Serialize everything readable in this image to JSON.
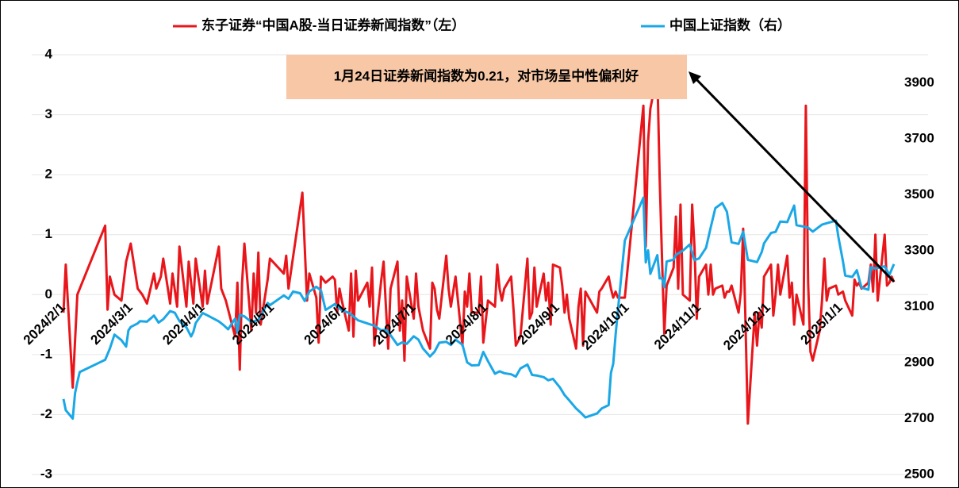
{
  "chart_data": {
    "type": "line",
    "legend_position": "top",
    "annotation": "1月24日证券新闻指数为0.21，对市场呈中性偏利好",
    "xlim": [
      "2024/2/1",
      "2025/1/24"
    ],
    "xticks": [
      "2024/2/1",
      "2024/3/1",
      "2024/4/1",
      "2024/5/1",
      "2024/6/1",
      "2024/7/1",
      "2024/8/1",
      "2024/9/1",
      "2024/10/1",
      "2024/11/1",
      "2024/12/1",
      "2025/1/1"
    ],
    "ylim": [
      -3,
      4
    ],
    "yticks": [
      -3,
      -2,
      -1,
      0,
      1,
      2,
      3,
      4
    ],
    "y2lim": [
      2500,
      4000
    ],
    "y2ticks": [
      2500,
      2700,
      2900,
      3100,
      3300,
      3500,
      3700,
      3900
    ],
    "grid": true,
    "series": [
      {
        "name": "东子证券“中国A股-当日证券新闻指数”（左）",
        "color": "#e8161b",
        "axis": "y",
        "x": [
          "2024/2/1",
          "2024/2/2",
          "2024/2/5",
          "2024/2/7",
          "2024/2/19",
          "2024/2/20",
          "2024/2/21",
          "2024/2/23",
          "2024/2/26",
          "2024/2/28",
          "2024/3/1",
          "2024/3/4",
          "2024/3/6",
          "2024/3/8",
          "2024/3/11",
          "2024/3/12",
          "2024/3/14",
          "2024/3/15",
          "2024/3/18",
          "2024/3/19",
          "2024/3/21",
          "2024/3/22",
          "2024/3/25",
          "2024/3/26",
          "2024/3/28",
          "2024/3/29",
          "2024/4/1",
          "2024/4/2",
          "2024/4/3",
          "2024/4/8",
          "2024/4/9",
          "2024/4/11",
          "2024/4/15",
          "2024/4/16",
          "2024/4/17",
          "2024/4/18",
          "2024/4/19",
          "2024/4/22",
          "2024/4/23",
          "2024/4/24",
          "2024/4/25",
          "2024/4/26",
          "2024/4/29",
          "2024/4/30",
          "2024/5/6",
          "2024/5/7",
          "2024/5/8",
          "2024/5/14",
          "2024/5/16",
          "2024/5/17",
          "2024/5/20",
          "2024/5/21",
          "2024/5/22",
          "2024/5/24",
          "2024/5/27",
          "2024/5/28",
          "2024/5/29",
          "2024/5/30",
          "2024/5/31",
          "2024/6/3",
          "2024/6/4",
          "2024/6/5",
          "2024/6/6",
          "2024/6/7",
          "2024/6/11",
          "2024/6/12",
          "2024/6/13",
          "2024/6/14",
          "2024/6/17",
          "2024/6/18",
          "2024/6/19",
          "2024/6/20",
          "2024/6/21",
          "2024/6/24",
          "2024/6/25",
          "2024/6/26",
          "2024/6/27",
          "2024/6/28",
          "2024/7/1",
          "2024/7/2",
          "2024/7/3",
          "2024/7/5",
          "2024/7/8",
          "2024/7/9",
          "2024/7/10",
          "2024/7/11",
          "2024/7/12",
          "2024/7/15",
          "2024/7/16",
          "2024/7/17",
          "2024/7/19",
          "2024/7/22",
          "2024/7/23",
          "2024/7/24",
          "2024/7/25",
          "2024/7/26",
          "2024/7/29",
          "2024/7/30",
          "2024/7/31",
          "2024/8/2",
          "2024/8/5",
          "2024/8/6",
          "2024/8/7",
          "2024/8/8",
          "2024/8/9",
          "2024/8/12",
          "2024/8/13",
          "2024/8/14",
          "2024/8/16",
          "2024/8/19",
          "2024/8/20",
          "2024/8/21",
          "2024/8/22",
          "2024/8/23",
          "2024/8/26",
          "2024/8/27",
          "2024/8/28",
          "2024/8/29",
          "2024/8/30",
          "2024/9/2",
          "2024/9/3",
          "2024/9/4",
          "2024/9/5",
          "2024/9/6",
          "2024/9/9",
          "2024/9/10",
          "2024/9/11",
          "2024/9/12",
          "2024/9/13",
          "2024/9/18",
          "2024/9/19",
          "2024/9/20",
          "2024/9/23",
          "2024/9/24",
          "2024/9/25",
          "2024/9/26",
          "2024/9/27",
          "2024/9/30",
          "2024/10/8",
          "2024/10/9",
          "2024/10/10",
          "2024/10/11",
          "2024/10/14",
          "2024/10/15",
          "2024/10/16",
          "2024/10/17",
          "2024/10/18",
          "2024/10/21",
          "2024/10/22",
          "2024/10/23",
          "2024/10/24",
          "2024/10/25",
          "2024/10/28",
          "2024/10/29",
          "2024/10/30",
          "2024/10/31",
          "2024/11/1",
          "2024/11/4",
          "2024/11/5",
          "2024/11/6",
          "2024/11/7",
          "2024/11/8",
          "2024/11/11",
          "2024/11/12",
          "2024/11/13",
          "2024/11/14",
          "2024/11/15",
          "2024/11/18",
          "2024/11/19",
          "2024/11/20",
          "2024/11/21",
          "2024/11/22",
          "2024/11/25",
          "2024/11/26",
          "2024/11/27",
          "2024/11/28",
          "2024/11/29",
          "2024/12/2",
          "2024/12/3",
          "2024/12/4",
          "2024/12/5",
          "2024/12/6",
          "2024/12/9",
          "2024/12/10",
          "2024/12/11",
          "2024/12/12",
          "2024/12/13",
          "2024/12/16",
          "2024/12/17",
          "2024/12/18",
          "2024/12/19",
          "2024/12/20",
          "2024/12/23",
          "2024/12/24",
          "2024/12/25",
          "2024/12/26",
          "2024/12/27",
          "2024/12/30",
          "2024/12/31",
          "2025/1/2",
          "2025/1/3",
          "2025/1/6",
          "2025/1/7",
          "2025/1/8",
          "2025/1/9",
          "2025/1/10",
          "2025/1/13",
          "2025/1/14",
          "2025/1/15",
          "2025/1/16",
          "2025/1/17",
          "2025/1/20",
          "2025/1/21",
          "2025/1/22",
          "2025/1/23",
          "2025/1/24"
        ],
        "values": [
          -0.3,
          0.5,
          -1.55,
          0,
          1.15,
          -0.25,
          0.3,
          0,
          -0.1,
          0.55,
          0.85,
          0.1,
          0,
          -0.15,
          0.35,
          0.1,
          0.3,
          0.6,
          -0.15,
          0.35,
          -0.2,
          0.8,
          -0.2,
          0.55,
          -0.15,
          0.6,
          -0.2,
          0.4,
          -0.15,
          0.8,
          0.1,
          -0.1,
          -0.7,
          0.2,
          -1.25,
          0.2,
          0.85,
          -0.6,
          0.35,
          -0.3,
          0.7,
          -0.5,
          0.25,
          0.6,
          0.35,
          0.65,
          0.1,
          1.7,
          -0.1,
          0.35,
          -0.05,
          -0.8,
          0.3,
          0.2,
          0.3,
          0.25,
          -0.3,
          0.1,
          -0.1,
          -0.6,
          0.35,
          -0.7,
          0.4,
          -0.1,
          0.2,
          -0.2,
          0.45,
          -0.85,
          0.25,
          0.55,
          -0.2,
          -0.9,
          0.1,
          0.55,
          -0.6,
          -0.1,
          -1.1,
          0.3,
          -0.4,
          0.35,
          -0.2,
          -0.6,
          -0.9,
          0.2,
          0.1,
          -0.25,
          -0.4,
          0.65,
          0.1,
          -0.2,
          0.3,
          -0.85,
          0.05,
          -0.2,
          0.35,
          -0.3,
          -0.3,
          0.3,
          -0.8,
          -0.1,
          -0.2,
          0.5,
          0.1,
          -0.1,
          0.1,
          0.3,
          -0.25,
          -0.85,
          -0.7,
          0.6,
          -0.4,
          -0.3,
          0.45,
          -0.2,
          0.35,
          -0.1,
          0.2,
          -0.5,
          0.5,
          0.45,
          0.15,
          -0.3,
          0,
          -0.4,
          -0.9,
          -0.2,
          0.1,
          -0.85,
          0.05,
          -0.3,
          0.05,
          0.1,
          0.3,
          0.1,
          -0.05,
          0.05,
          -0.05,
          -0.05,
          3.15,
          0.8,
          2.55,
          3.1,
          3.7,
          1.95,
          0.65,
          -0.65,
          0.15,
          0.45,
          1.3,
          0.1,
          1.5,
          0,
          -0.1,
          1.5,
          0.8,
          -0.4,
          0.3,
          0.5,
          0,
          0.5,
          0,
          0.1,
          0.15,
          -0.05,
          0.05,
          0.05,
          0.15,
          -0.3,
          0.05,
          1.1,
          -0.45,
          -2.15,
          -0.3,
          -0.85,
          -0.3,
          -0.55,
          0.3,
          0.5,
          -0.35,
          0,
          0.5,
          0,
          0.65,
          -0.05,
          0.2,
          -0.5,
          0,
          -0.5,
          3.15,
          0.2,
          -0.95,
          -1.1,
          -0.6,
          -0.1,
          0.6,
          -0.1,
          0.1,
          0.15,
          0,
          0.05,
          -0.1,
          -0.35,
          0.25,
          0.15,
          0.2,
          0.1,
          0.2,
          0.5,
          0.05,
          1.0,
          -0.1,
          1.0,
          0.15,
          0.2,
          0.3,
          0.21
        ]
      },
      {
        "name": "中国上证指数（右）",
        "color": "#1aa7e6",
        "axis": "y2",
        "x": [
          "2024/2/1",
          "2024/2/2",
          "2024/2/5",
          "2024/2/6",
          "2024/2/7",
          "2024/2/8",
          "2024/2/19",
          "2024/2/21",
          "2024/2/23",
          "2024/2/26",
          "2024/2/28",
          "2024/2/29",
          "2024/3/1",
          "2024/3/4",
          "2024/3/5",
          "2024/3/8",
          "2024/3/11",
          "2024/3/13",
          "2024/3/15",
          "2024/3/18",
          "2024/3/20",
          "2024/3/22",
          "2024/3/25",
          "2024/3/27",
          "2024/3/28",
          "2024/3/29",
          "2024/4/1",
          "2024/4/3",
          "2024/4/8",
          "2024/4/10",
          "2024/4/12",
          "2024/4/15",
          "2024/4/16",
          "2024/4/17",
          "2024/4/19",
          "2024/4/22",
          "2024/4/25",
          "2024/4/29",
          "2024/4/30",
          "2024/5/6",
          "2024/5/8",
          "2024/5/10",
          "2024/5/13",
          "2024/5/15",
          "2024/5/17",
          "2024/5/20",
          "2024/5/22",
          "2024/5/24",
          "2024/5/28",
          "2024/5/31",
          "2024/6/3",
          "2024/6/5",
          "2024/6/7",
          "2024/6/12",
          "2024/6/14",
          "2024/6/17",
          "2024/6/19",
          "2024/6/21",
          "2024/6/24",
          "2024/6/26",
          "2024/6/28",
          "2024/7/1",
          "2024/7/3",
          "2024/7/5",
          "2024/7/8",
          "2024/7/10",
          "2024/7/12",
          "2024/7/15",
          "2024/7/17",
          "2024/7/19",
          "2024/7/22",
          "2024/7/24",
          "2024/7/26",
          "2024/7/29",
          "2024/7/31",
          "2024/8/2",
          "2024/8/5",
          "2024/8/7",
          "2024/8/9",
          "2024/8/12",
          "2024/8/14",
          "2024/8/16",
          "2024/8/19",
          "2024/8/21",
          "2024/8/23",
          "2024/8/26",
          "2024/8/28",
          "2024/8/30",
          "2024/9/2",
          "2024/9/4",
          "2024/9/6",
          "2024/9/9",
          "2024/9/11",
          "2024/9/13",
          "2024/9/18",
          "2024/9/20",
          "2024/9/23",
          "2024/9/24",
          "2024/9/25",
          "2024/9/26",
          "2024/9/27",
          "2024/9/30",
          "2024/10/8",
          "2024/10/9",
          "2024/10/10",
          "2024/10/11",
          "2024/10/14",
          "2024/10/15",
          "2024/10/16",
          "2024/10/17",
          "2024/10/18",
          "2024/10/21",
          "2024/10/22",
          "2024/10/25",
          "2024/10/28",
          "2024/10/30",
          "2024/11/1",
          "2024/11/4",
          "2024/11/6",
          "2024/11/8",
          "2024/11/11",
          "2024/11/13",
          "2024/11/15",
          "2024/11/18",
          "2024/11/20",
          "2024/11/22",
          "2024/11/26",
          "2024/11/28",
          "2024/11/29",
          "2024/12/2",
          "2024/12/4",
          "2024/12/6",
          "2024/12/9",
          "2024/12/10",
          "2024/12/12",
          "2024/12/13",
          "2024/12/16",
          "2024/12/18",
          "2024/12/20",
          "2024/12/24",
          "2024/12/26",
          "2024/12/30",
          "2024/12/31",
          "2025/1/2",
          "2025/1/3",
          "2025/1/6",
          "2025/1/8",
          "2025/1/10",
          "2025/1/13",
          "2025/1/14",
          "2025/1/16",
          "2025/1/20",
          "2025/1/22",
          "2025/1/24"
        ],
        "values": [
          2770,
          2730,
          2700,
          2790,
          2830,
          2866,
          2910,
          2950,
          3000,
          2980,
          2957,
          3015,
          3027,
          3040,
          3048,
          3046,
          3068,
          3043,
          3055,
          3084,
          3078,
          3048,
          3026,
          2993,
          3010,
          3041,
          3077,
          3069,
          3047,
          3034,
          3019,
          3057,
          3007,
          3071,
          3065,
          3045,
          3052,
          3113,
          3105,
          3140,
          3128,
          3154,
          3148,
          3120,
          3154,
          3171,
          3158,
          3088,
          3109,
          3087,
          3078,
          3065,
          3051,
          3037,
          3032,
          3015,
          3018,
          2998,
          2963,
          2972,
          2967,
          2994,
          2982,
          2950,
          2922,
          2939,
          2971,
          2974,
          2963,
          2982,
          2964,
          2901,
          2890,
          2891,
          2938,
          2905,
          2860,
          2869,
          2862,
          2858,
          2850,
          2879,
          2893,
          2856,
          2854,
          2848,
          2837,
          2842,
          2811,
          2784,
          2765,
          2736,
          2721,
          2704,
          2718,
          2736,
          2748,
          2863,
          2896,
          3000,
          3087,
          3336,
          3489,
          3258,
          3301,
          3217,
          3284,
          3201,
          3202,
          3169,
          3261,
          3268,
          3285,
          3300,
          3322,
          3266,
          3272,
          3310,
          3383,
          3452,
          3470,
          3439,
          3330,
          3324,
          3368,
          3267,
          3259,
          3295,
          3326,
          3363,
          3367,
          3404,
          3402,
          3422,
          3461,
          3391,
          3386,
          3382,
          3368,
          3393,
          3398,
          3407,
          3351,
          3262,
          3211,
          3206,
          3230,
          3168,
          3160,
          3241,
          3236,
          3244,
          3213,
          3252
        ]
      }
    ]
  }
}
